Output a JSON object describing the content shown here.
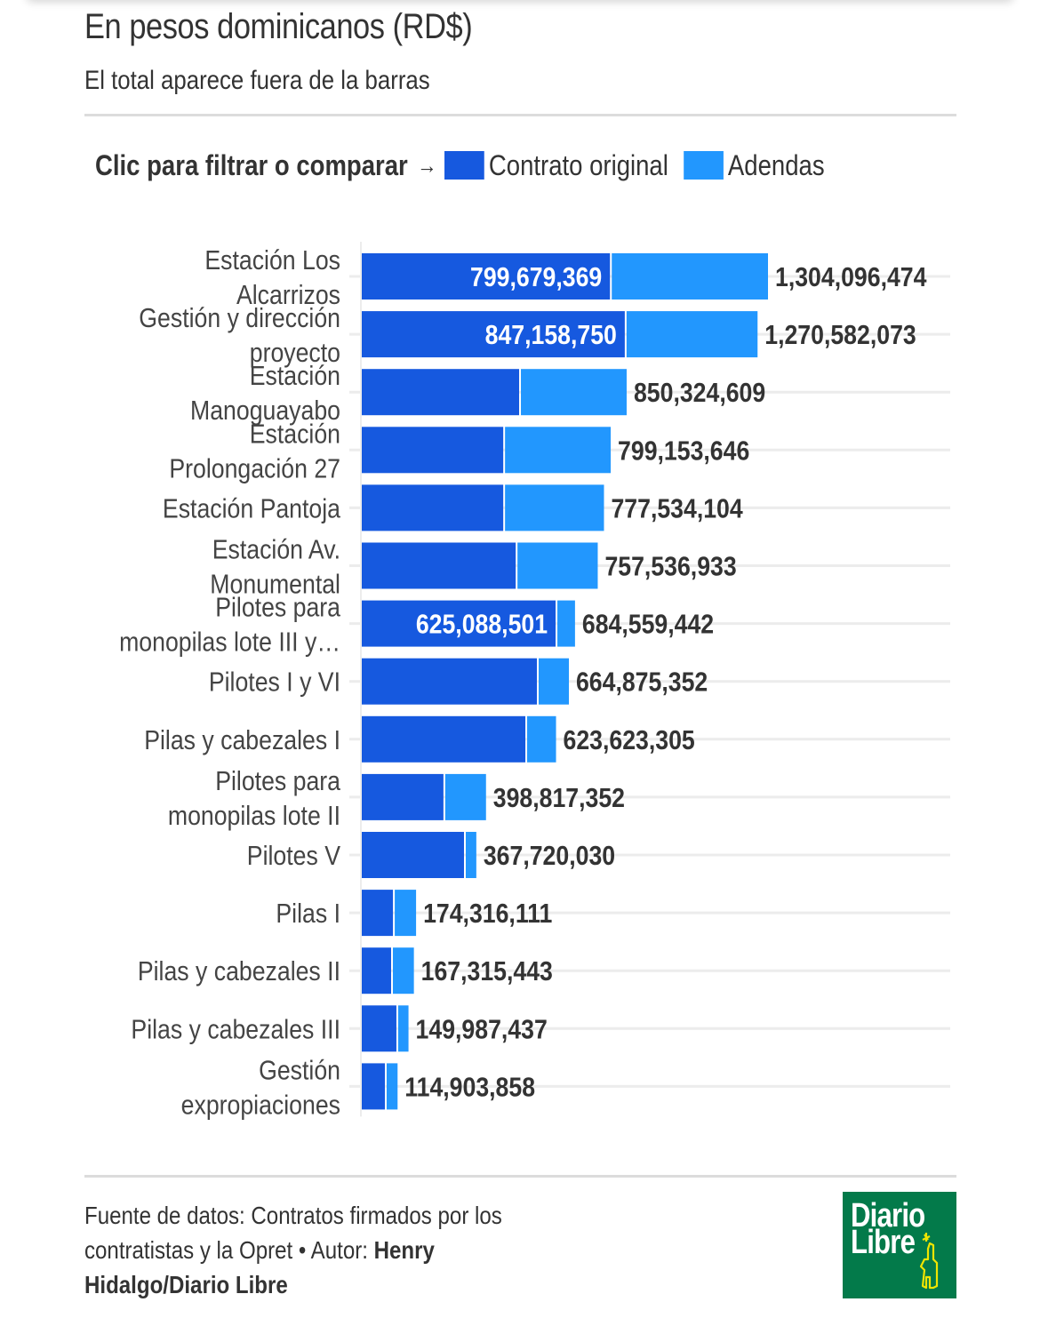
{
  "header": {
    "title": "En pesos dominicanos (RD$)",
    "subtitle": "El total aparece fuera de la barras"
  },
  "legend": {
    "prompt": "Clic para filtrar o comparar",
    "arrow": "→",
    "items": [
      {
        "label": "Contrato original",
        "color": "#1659df"
      },
      {
        "label": "Adendas",
        "color": "#2297fe"
      }
    ]
  },
  "chart_data": {
    "type": "bar",
    "orientation": "horizontal",
    "stacked": true,
    "title": "En pesos dominicanos (RD$)",
    "subtitle": "El total aparece fuera de la barras",
    "xlabel": "",
    "ylabel": "",
    "xlim": [
      0,
      1304096474
    ],
    "grid": true,
    "legend_position": "top",
    "categories": [
      [
        "Estación Los",
        "Alcarrizos"
      ],
      [
        "Gestión y dirección",
        "proyecto"
      ],
      [
        "Estación",
        "Manoguayabo"
      ],
      [
        "Estación",
        "Prolongación 27"
      ],
      [
        "Estación Pantoja"
      ],
      [
        "Estación Av.",
        "Monumental"
      ],
      [
        "Pilotes para",
        "monopilas lote III y…"
      ],
      [
        "Pilotes I y VI"
      ],
      [
        "Pilas y cabezales I"
      ],
      [
        "Pilotes para",
        "monopilas lote II"
      ],
      [
        "Pilotes V"
      ],
      [
        "Pilas I"
      ],
      [
        "Pilas y cabezales II"
      ],
      [
        "Pilas y cabezales III"
      ],
      [
        "Gestión",
        "expropiaciones"
      ]
    ],
    "series": [
      {
        "name": "Contrato original",
        "color": "#1659df",
        "values": [
          799679369,
          847158750,
          508000000,
          457000000,
          457000000,
          497000000,
          625088501,
          565000000,
          528000000,
          265000000,
          331000000,
          103000000,
          97000000,
          114000000,
          77000000
        ],
        "labels": [
          "799,679,369",
          "847,158,750",
          "",
          "",
          "",
          "",
          "625,088,501",
          "",
          "",
          "",
          "",
          "",
          "",
          "",
          ""
        ]
      },
      {
        "name": "Adendas",
        "color": "#2297fe",
        "values": [
          504417105,
          423423323,
          342324609,
          342153646,
          320534104,
          260536933,
          59470941,
          99875352,
          95623305,
          133817352,
          36720030,
          71316111,
          70315443,
          35987437,
          37903858
        ]
      }
    ],
    "totals": [
      1304096474,
      1270582073,
      850324609,
      799153646,
      777534104,
      757536933,
      684559442,
      664875352,
      623623305,
      398817352,
      367720030,
      174316111,
      167315443,
      149987437,
      114903858
    ],
    "total_labels": [
      "1,304,096,474",
      "1,270,582,073",
      "850,324,609",
      "799,153,646",
      "777,534,104",
      "757,536,933",
      "684,559,442",
      "664,875,352",
      "623,623,305",
      "398,817,352",
      "367,720,030",
      "174,316,111",
      "167,315,443",
      "149,987,437",
      "114,903,858"
    ]
  },
  "footer": {
    "source_text": "Fuente de datos: Contratos firmados por los contratistas y la Opret • Autor: ",
    "author": "Henry Hidalgo/Diario Libre"
  },
  "logo": {
    "line1": "Diario",
    "line2": "Libre",
    "brand_color": "#037a4a",
    "accent_color": "#f0e500"
  }
}
